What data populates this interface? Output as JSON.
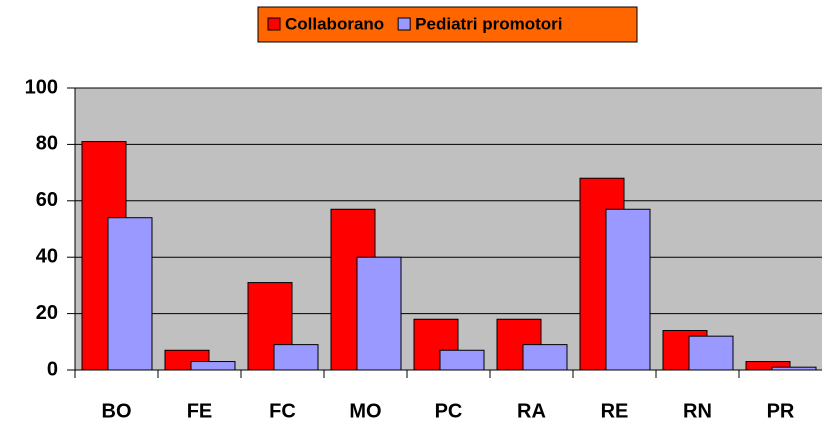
{
  "chart_data": {
    "type": "bar",
    "categories": [
      "BO",
      "FE",
      "FC",
      "MO",
      "PC",
      "RA",
      "RE",
      "RN",
      "PR"
    ],
    "series": [
      {
        "name": "Collaborano",
        "color": "#ff0000",
        "values": [
          81,
          7,
          31,
          57,
          18,
          18,
          68,
          14,
          3
        ]
      },
      {
        "name": "Pediatri promotori",
        "color": "#9999ff",
        "values": [
          54,
          3,
          9,
          40,
          7,
          9,
          57,
          12,
          1
        ]
      }
    ],
    "ylim": [
      0,
      100
    ],
    "yticks": [
      0,
      20,
      40,
      60,
      80,
      100
    ],
    "grid": true,
    "plot_background": "#c0c0c0",
    "legend_background": "#ff6600",
    "legend": "top"
  }
}
